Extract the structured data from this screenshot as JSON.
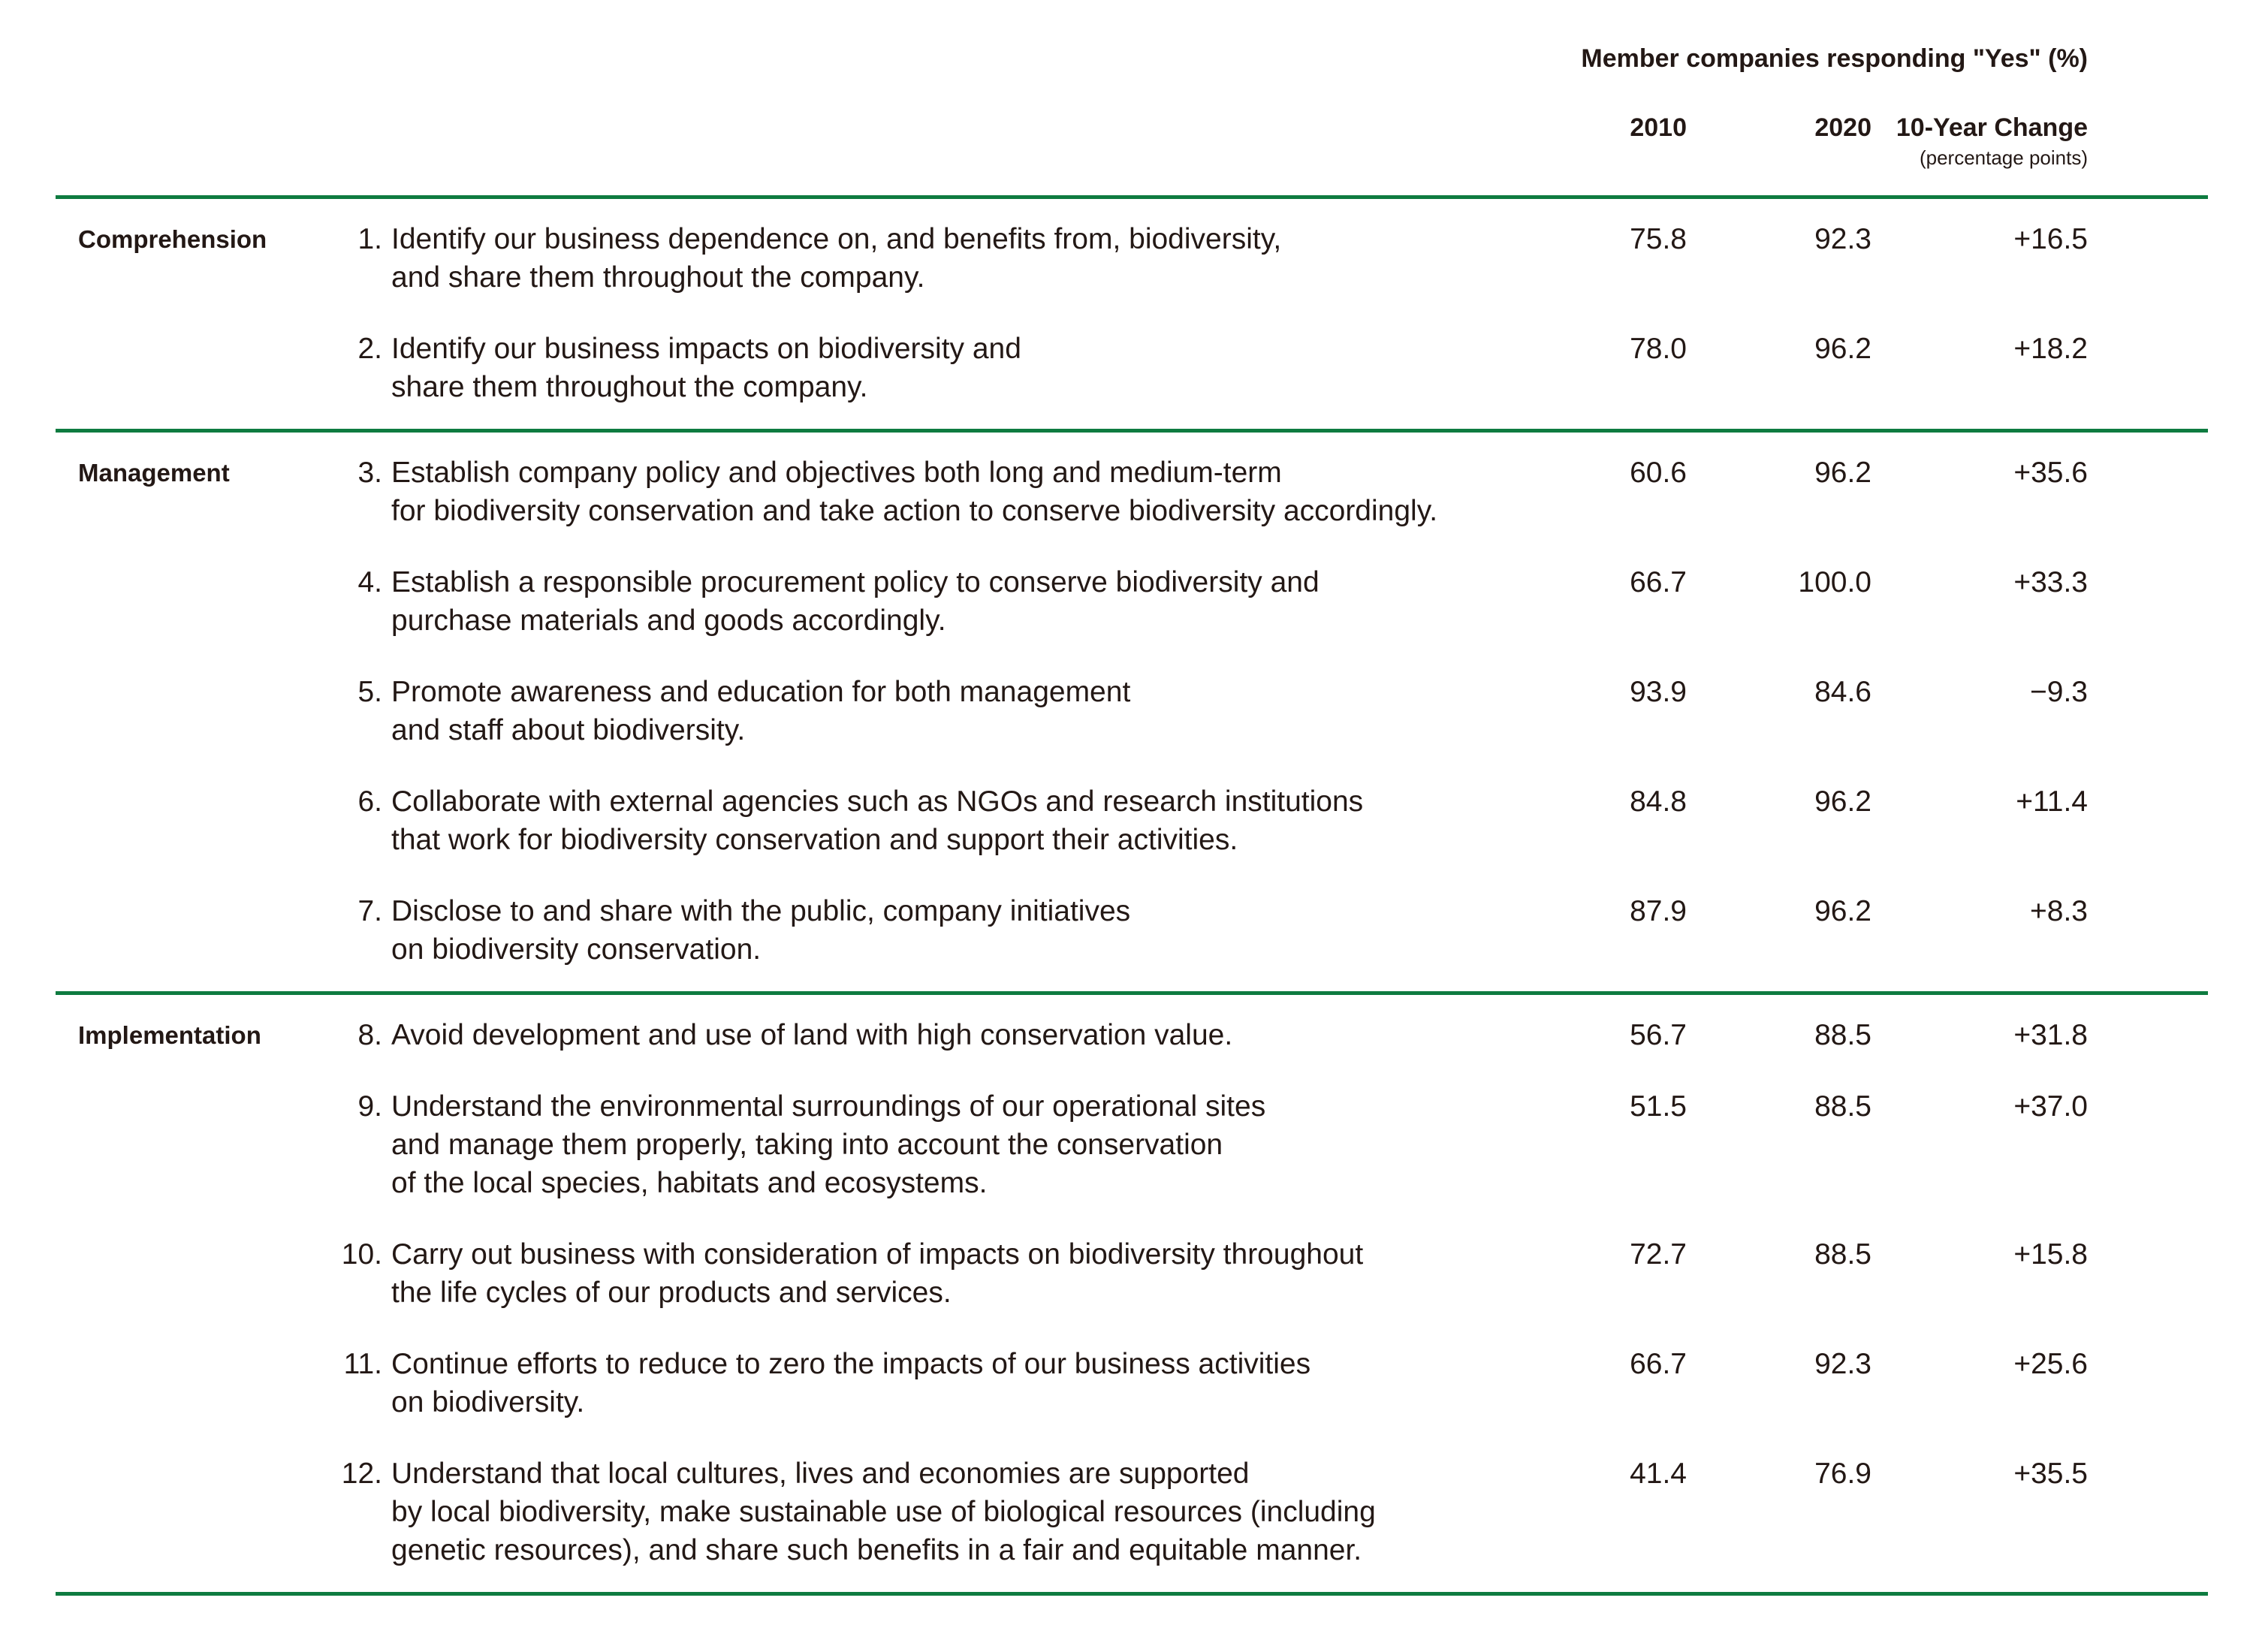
{
  "page": {
    "background": "#ffffff",
    "text_color": "#231815",
    "accent_green": "#0e7b40"
  },
  "header": {
    "title": "Member companies responding \"Yes\" (%)",
    "columns": {
      "y2010": "2010",
      "y2020": "2020",
      "change": "10-Year Change",
      "change_unit": "(percentage points)"
    }
  },
  "sections": [
    {
      "label": "Comprehension",
      "items": [
        {
          "num": "1.",
          "lines": [
            "Identify our business dependence on, and benefits from, biodiversity,",
            "and share them throughout the company."
          ],
          "y2010": "75.8",
          "y2020": "92.3",
          "change": "+16.5"
        },
        {
          "num": "2.",
          "lines": [
            "Identify our business impacts on biodiversity and",
            "share them throughout the company."
          ],
          "y2010": "78.0",
          "y2020": "96.2",
          "change": "+18.2"
        }
      ]
    },
    {
      "label": "Management",
      "items": [
        {
          "num": "3.",
          "lines": [
            "Establish company policy and objectives both long and medium-term",
            "for biodiversity conservation and take action to conserve biodiversity accordingly."
          ],
          "y2010": "60.6",
          "y2020": "96.2",
          "change": "+35.6"
        },
        {
          "num": "4.",
          "lines": [
            "Establish a responsible procurement policy to conserve biodiversity and",
            "purchase materials and goods accordingly."
          ],
          "y2010": "66.7",
          "y2020": "100.0",
          "change": "+33.3"
        },
        {
          "num": "5.",
          "lines": [
            "Promote awareness and education for both management",
            "and staff about biodiversity."
          ],
          "y2010": "93.9",
          "y2020": "84.6",
          "change": "−9.3"
        },
        {
          "num": "6.",
          "lines": [
            "Collaborate with external agencies such as NGOs and research institutions",
            "that work for biodiversity conservation and support their activities."
          ],
          "y2010": "84.8",
          "y2020": "96.2",
          "change": "+11.4"
        },
        {
          "num": "7.",
          "lines": [
            "Disclose to and share with the public, company initiatives",
            "on biodiversity conservation."
          ],
          "y2010": "87.9",
          "y2020": "96.2",
          "change": "+8.3"
        }
      ]
    },
    {
      "label": "Implementation",
      "items": [
        {
          "num": "8.",
          "lines": [
            "Avoid development and use of land with high conservation value."
          ],
          "y2010": "56.7",
          "y2020": "88.5",
          "change": "+31.8"
        },
        {
          "num": "9.",
          "lines": [
            "Understand the environmental surroundings of our operational sites",
            "and manage them properly, taking into account the conservation",
            "of the local species, habitats and ecosystems."
          ],
          "y2010": "51.5",
          "y2020": "88.5",
          "change": "+37.0"
        },
        {
          "num": "10.",
          "lines": [
            "Carry out business with consideration of impacts on biodiversity throughout",
            "the life cycles of our products and services."
          ],
          "y2010": "72.7",
          "y2020": "88.5",
          "change": "+15.8"
        },
        {
          "num": "11.",
          "lines": [
            "Continue efforts to reduce to zero the impacts of our business activities",
            "on biodiversity."
          ],
          "y2010": "66.7",
          "y2020": "92.3",
          "change": "+25.6"
        },
        {
          "num": "12.",
          "lines": [
            "Understand that local cultures, lives and economies are supported",
            "by local biodiversity, make sustainable use of biological resources (including",
            "genetic resources), and share such benefits in a fair and equitable manner."
          ],
          "y2010": "41.4",
          "y2020": "76.9",
          "change": "+35.5"
        }
      ]
    }
  ]
}
